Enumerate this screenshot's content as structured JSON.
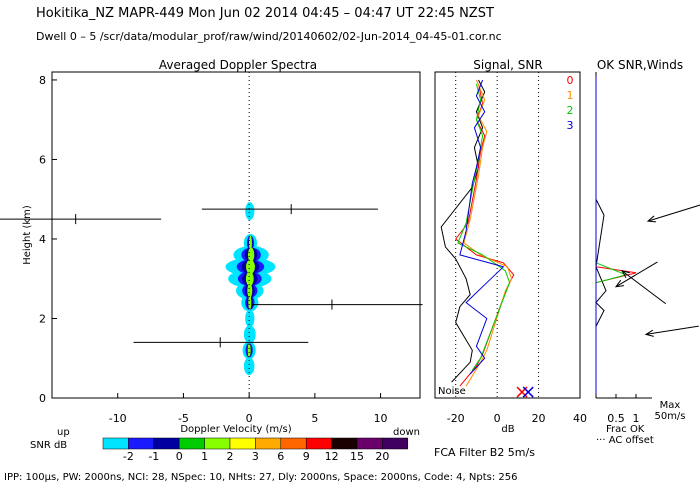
{
  "header": {
    "line1": "Hokitika_NZ   MAPR-449   Mon Jun 02 2014 04:45 – 04:47 UT 22:45 NZST",
    "line2": "Dwell   0 –  5   /scr/data/modular_prof/raw/wind/20140602/02-Jun-2014_04-45-01.cor.nc"
  },
  "footer": {
    "params": "IPP: 100μs,   PW: 2000ns,   NCI:   28,   NSpec: 10,  NHts: 27,   Dly: 2000ns,   Space: 2000ns,   Code: 4,   Npts: 256",
    "filter": "FCA Filter B2   5m/s"
  },
  "chart_data": [
    {
      "type": "heatmap",
      "title": "Averaged Doppler Spectra",
      "xlabel": "Doppler Velocity (m/s)",
      "ylabel": "Height (km)",
      "xlim": [
        -15,
        13
      ],
      "ylim": [
        0,
        8.2
      ],
      "x_ticks": [
        -10,
        -5,
        0,
        5,
        10
      ],
      "y_ticks": [
        0,
        2,
        4,
        6,
        8
      ],
      "direction_labels": {
        "left": "up",
        "right": "down"
      },
      "spectra_extent": [
        {
          "h": 0.8,
          "xmin": -0.4,
          "xmax": 0.4
        },
        {
          "h": 1.2,
          "xmin": -0.5,
          "xmax": 0.5
        },
        {
          "h": 1.6,
          "xmin": -0.4,
          "xmax": 0.5
        },
        {
          "h": 2.0,
          "xmin": -0.3,
          "xmax": 0.4
        },
        {
          "h": 2.4,
          "xmin": -0.6,
          "xmax": 0.7
        },
        {
          "h": 2.7,
          "xmin": -1.0,
          "xmax": 1.1
        },
        {
          "h": 3.0,
          "xmin": -1.6,
          "xmax": 1.7
        },
        {
          "h": 3.3,
          "xmin": -1.8,
          "xmax": 2.0
        },
        {
          "h": 3.6,
          "xmin": -1.2,
          "xmax": 1.5
        },
        {
          "h": 3.9,
          "xmin": -0.4,
          "xmax": 0.6
        },
        {
          "h": 4.7,
          "xmin": -0.3,
          "xmax": 0.4
        }
      ],
      "moment_bars": [
        {
          "h": 1.4,
          "center": -2.2,
          "xmin": -8.8,
          "xmax": 4.5
        },
        {
          "h": 2.35,
          "center": 6.3,
          "xmin": 0.2,
          "xmax": 13.2
        },
        {
          "h": 4.5,
          "center": -13.2,
          "xmin": -19.0,
          "xmax": -6.7
        },
        {
          "h": 4.75,
          "center": 3.2,
          "xmin": -3.6,
          "xmax": 9.8
        }
      ],
      "colorbar": {
        "label": "SNR dB",
        "values": [
          "-2",
          "-1",
          "0",
          "1",
          "2",
          "3",
          "6",
          "9",
          "12",
          "15",
          "20"
        ],
        "colors": [
          "#00e5ff",
          "#1a1aff",
          "#0000a0",
          "#00cc00",
          "#88ff00",
          "#ffff00",
          "#ffaa00",
          "#ff6600",
          "#ff0000",
          "#1a0000",
          "#6a006a",
          "#400060"
        ]
      }
    },
    {
      "type": "line",
      "title": "Signal, SNR",
      "xlabel": "dB",
      "xlim": [
        -30,
        40
      ],
      "ylim": [
        0,
        8.2
      ],
      "x_ticks": [
        -20,
        0,
        20,
        40
      ],
      "annotation": "Noise",
      "series": [
        {
          "name": "noise",
          "color": "#000000",
          "points": [
            [
              -9,
              8.0
            ],
            [
              -6,
              7.7
            ],
            [
              -10,
              7.2
            ],
            [
              -7,
              6.8
            ],
            [
              -11,
              6.3
            ],
            [
              -9,
              5.8
            ],
            [
              -12,
              5.3
            ],
            [
              -27,
              4.3
            ],
            [
              -25,
              3.8
            ],
            [
              -20,
              3.5
            ],
            [
              -15,
              3.0
            ],
            [
              -13,
              2.6
            ],
            [
              -18,
              2.3
            ],
            [
              -20,
              1.9
            ],
            [
              -12,
              1.2
            ],
            [
              -13,
              0.9
            ],
            [
              -22,
              0.4
            ]
          ]
        },
        {
          "name": "0",
          "color": "#ff0000",
          "points": [
            [
              -9,
              7.9
            ],
            [
              -7,
              7.4
            ],
            [
              -10,
              7.0
            ],
            [
              -6,
              6.6
            ],
            [
              -8,
              6.2
            ],
            [
              -10,
              5.5
            ],
            [
              -14,
              4.4
            ],
            [
              -20,
              4.0
            ],
            [
              -10,
              3.6
            ],
            [
              3,
              3.4
            ],
            [
              8,
              3.1
            ],
            [
              5,
              2.8
            ],
            [
              -7,
              1.1
            ],
            [
              -10,
              0.8
            ],
            [
              -18,
              0.3
            ]
          ]
        },
        {
          "name": "1",
          "color": "#ff8c00",
          "points": [
            [
              -10,
              8.0
            ],
            [
              -6,
              7.5
            ],
            [
              -9,
              7.1
            ],
            [
              -5,
              6.7
            ],
            [
              -7,
              6.3
            ],
            [
              -9,
              5.6
            ],
            [
              -13,
              4.5
            ],
            [
              -16,
              3.9
            ],
            [
              -8,
              3.6
            ],
            [
              5,
              3.3
            ],
            [
              7,
              3.0
            ],
            [
              4,
              2.7
            ],
            [
              -5,
              1.2
            ],
            [
              -8,
              0.9
            ],
            [
              -15,
              0.3
            ]
          ]
        },
        {
          "name": "2",
          "color": "#00cc00",
          "points": [
            [
              -10,
              7.9
            ],
            [
              -8,
              7.5
            ],
            [
              -10,
              7.0
            ],
            [
              -7,
              6.6
            ],
            [
              -9,
              6.0
            ],
            [
              -11,
              5.5
            ],
            [
              -15,
              4.4
            ],
            [
              -19,
              3.9
            ],
            [
              -7,
              3.6
            ],
            [
              4,
              3.2
            ],
            [
              6,
              2.9
            ],
            [
              -8,
              1.0
            ],
            [
              -12,
              0.7
            ]
          ]
        },
        {
          "name": "3",
          "color": "#0000dd",
          "points": [
            [
              -7,
              8.0
            ],
            [
              -10,
              7.6
            ],
            [
              -6,
              7.2
            ],
            [
              -11,
              6.8
            ],
            [
              -8,
              6.3
            ],
            [
              -10,
              5.8
            ],
            [
              -12,
              5.4
            ],
            [
              -15,
              4.2
            ],
            [
              -18,
              3.6
            ],
            [
              3,
              3.3
            ],
            [
              -5,
              2.9
            ],
            [
              -15,
              2.4
            ],
            [
              -5,
              2.0
            ],
            [
              -10,
              1.3
            ],
            [
              -6,
              1.0
            ],
            [
              -13,
              0.6
            ]
          ]
        }
      ],
      "markers": [
        {
          "x": 12,
          "h": 0.15,
          "color": "#ff0000"
        },
        {
          "x": 15,
          "h": 0.15,
          "color": "#0000dd"
        }
      ]
    },
    {
      "type": "line",
      "title": "OK SNR,Winds",
      "xlabel": "Frac OK",
      "xlim": [
        0,
        1.7
      ],
      "x_ticks": [
        0.5,
        1
      ],
      "tick_labels": [
        "0.5",
        "1"
      ],
      "legend": [
        "0",
        "1",
        "2",
        "3"
      ],
      "legend_colors": [
        "#ff0000",
        "#ff8c00",
        "#00cc00",
        "#0000dd"
      ],
      "wind_scale": "Max\n50m/s",
      "offset_note": "AC offset",
      "frac_series": [
        {
          "color": "#000000",
          "points": [
            [
              0.0,
              8.1
            ],
            [
              0.0,
              5.0
            ],
            [
              0.2,
              4.6
            ],
            [
              0.0,
              3.3
            ],
            [
              0.25,
              2.7
            ],
            [
              0.0,
              2.4
            ],
            [
              0.2,
              2.2
            ],
            [
              0.0,
              1.8
            ],
            [
              0.0,
              0.1
            ]
          ]
        },
        {
          "color": "#ff0000",
          "points": [
            [
              0.0,
              3.3
            ],
            [
              1.0,
              3.15
            ],
            [
              0.0,
              2.9
            ]
          ]
        },
        {
          "color": "#00cc00",
          "points": [
            [
              0.0,
              3.4
            ],
            [
              0.75,
              3.1
            ],
            [
              0.0,
              2.9
            ]
          ]
        },
        {
          "color": "#0000dd",
          "points": [
            [
              0.0,
              8.1
            ],
            [
              0.0,
              0.1
            ]
          ]
        }
      ],
      "wind_vectors": [
        {
          "h": 4.45,
          "dx": 0.9,
          "dy": 0.3
        },
        {
          "h": 3.2,
          "dx": 0.25,
          "dy": -0.6
        },
        {
          "h": 2.8,
          "dx": 0.1,
          "dy": 0.45
        },
        {
          "h": 1.6,
          "dx": 0.85,
          "dy": 0.15
        }
      ]
    }
  ]
}
